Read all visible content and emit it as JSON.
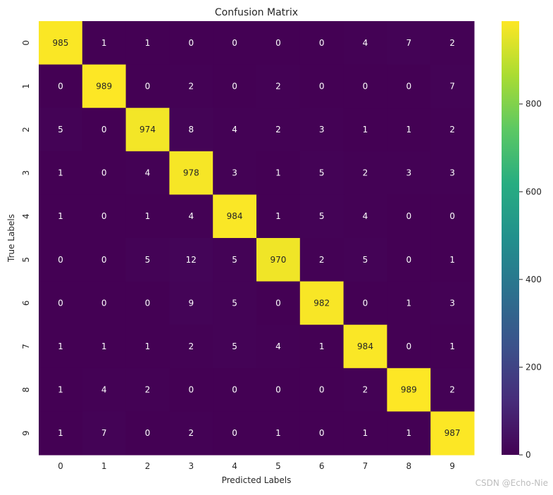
{
  "chart_data": {
    "type": "heatmap",
    "title": "Confusion Matrix",
    "xlabel": "Predicted Labels",
    "ylabel": "True Labels",
    "x_categories": [
      "0",
      "1",
      "2",
      "3",
      "4",
      "5",
      "6",
      "7",
      "8",
      "9"
    ],
    "y_categories": [
      "0",
      "1",
      "2",
      "3",
      "4",
      "5",
      "6",
      "7",
      "8",
      "9"
    ],
    "matrix": [
      [
        985,
        1,
        1,
        0,
        0,
        0,
        0,
        4,
        7,
        2
      ],
      [
        0,
        989,
        0,
        2,
        0,
        2,
        0,
        0,
        0,
        7
      ],
      [
        5,
        0,
        974,
        8,
        4,
        2,
        3,
        1,
        1,
        2
      ],
      [
        1,
        0,
        4,
        978,
        3,
        1,
        5,
        2,
        3,
        3
      ],
      [
        1,
        0,
        1,
        4,
        984,
        1,
        5,
        4,
        0,
        0
      ],
      [
        0,
        0,
        5,
        12,
        5,
        970,
        2,
        5,
        0,
        1
      ],
      [
        0,
        0,
        0,
        9,
        5,
        0,
        982,
        0,
        1,
        3
      ],
      [
        1,
        1,
        1,
        2,
        5,
        4,
        1,
        984,
        0,
        1
      ],
      [
        1,
        4,
        2,
        0,
        0,
        0,
        0,
        2,
        989,
        2
      ],
      [
        1,
        7,
        0,
        2,
        0,
        1,
        0,
        1,
        1,
        987
      ]
    ],
    "colormap": "viridis",
    "vmin": 0,
    "vmax": 989,
    "colorbar_ticks": [
      0,
      200,
      400,
      600,
      800
    ],
    "annot_color_dark_bg": "#ffffff",
    "annot_color_light_bg": "#262626"
  },
  "watermark": "CSDN @Echo-Nie"
}
